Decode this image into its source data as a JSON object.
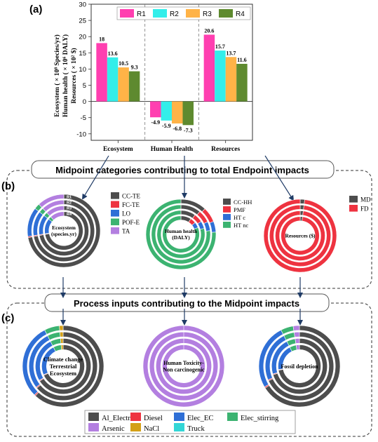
{
  "panel_a": {
    "label": "(a)",
    "ylabel": "Ecosystem ( × 10⁸ Species/yr)",
    "ylabel2": "Human health ( × 10⁶ DALY)",
    "ylabel3": "Resources ( × 10² $)",
    "series_colors": [
      "#ff3fb0",
      "#33eeea",
      "#ffb347",
      "#5e8a2f"
    ]
  },
  "chart_data": [
    {
      "type": "bar",
      "categories": [
        "Ecosystem",
        "Human Health",
        "Resources"
      ],
      "series": [
        {
          "name": "R1",
          "values": [
            18,
            -4.9,
            20.6
          ]
        },
        {
          "name": "R2",
          "values": [
            13.6,
            -5.9,
            15.7
          ]
        },
        {
          "name": "R3",
          "values": [
            10.5,
            -6.8,
            13.7
          ]
        },
        {
          "name": "R4",
          "values": [
            9.3,
            -7.3,
            11.6
          ]
        }
      ],
      "ylim": [
        -12,
        30
      ],
      "yticks": [
        -10,
        -5,
        0,
        5,
        10,
        15,
        20,
        25,
        30
      ],
      "legend": "top"
    },
    {
      "type": "pie",
      "subtype": "nested-donut",
      "title": "Ecosystem (species.yr)",
      "ring_labels": [
        "R4",
        "R3",
        "R2",
        "R1"
      ],
      "categories": [
        "CC-TE",
        "FC-TE",
        "LO",
        "POF-E",
        "TA"
      ],
      "series": [
        {
          "values": [
            72,
            0.5,
            13,
            2.5,
            12
          ]
        },
        {
          "values": [
            72,
            0.5,
            13,
            2.5,
            12
          ]
        },
        {
          "values": [
            72,
            0.5,
            13,
            2.5,
            12
          ]
        },
        {
          "values": [
            72,
            0.5,
            13,
            2.5,
            12
          ]
        }
      ]
    },
    {
      "type": "pie",
      "subtype": "nested-donut",
      "title": "Human health (DALY)",
      "categories": [
        "CC-HH",
        "PMF",
        "HT c",
        "HT nc"
      ],
      "series": [
        {
          "values": [
            12,
            7,
            5,
            76
          ]
        },
        {
          "values": [
            11,
            7,
            5,
            77
          ]
        },
        {
          "values": [
            10,
            6,
            5,
            79
          ]
        },
        {
          "values": [
            9,
            5,
            5,
            81
          ]
        }
      ]
    },
    {
      "type": "pie",
      "subtype": "nested-donut",
      "title": "Resources ($)",
      "categories": [
        "MD",
        "FD"
      ],
      "series": [
        {
          "values": [
            2,
            98
          ]
        },
        {
          "values": [
            2,
            98
          ]
        },
        {
          "values": [
            2,
            98
          ]
        },
        {
          "values": [
            2,
            98
          ]
        }
      ]
    },
    {
      "type": "pie",
      "subtype": "nested-donut",
      "title": "Climate change Terrestrial Ecosystem",
      "categories": [
        "Al_Electrode",
        "Diesel",
        "Elec_EC",
        "Elec_stirring",
        "Arsenic",
        "NaCl",
        "Truck"
      ],
      "series": [
        {
          "values": [
            62,
            0.5,
            30,
            6,
            0,
            1.5,
            0
          ]
        },
        {
          "values": [
            64,
            0.5,
            28,
            6,
            0,
            1.5,
            0
          ]
        },
        {
          "values": [
            66,
            0.5,
            26,
            6,
            0,
            1.5,
            0
          ]
        },
        {
          "values": [
            68,
            0.5,
            24,
            6,
            0,
            1.5,
            0
          ]
        }
      ]
    },
    {
      "type": "pie",
      "subtype": "nested-donut",
      "title": "Human Toxicity- Non carcinogenic",
      "categories": [
        "Al_Electrode",
        "Diesel",
        "Elec_EC",
        "Elec_stirring",
        "Arsenic",
        "NaCl",
        "Truck"
      ],
      "series": [
        {
          "values": [
            0,
            0,
            0,
            0,
            100,
            0,
            0
          ]
        },
        {
          "values": [
            0,
            0,
            0,
            0,
            100,
            0,
            0
          ]
        },
        {
          "values": [
            0,
            0,
            0,
            0,
            100,
            0,
            0
          ]
        },
        {
          "values": [
            0,
            0,
            0,
            0,
            100,
            0,
            0
          ]
        }
      ]
    },
    {
      "type": "pie",
      "subtype": "nested-donut",
      "title": "Fossil depletion",
      "categories": [
        "Al_Electrode",
        "Diesel",
        "Elec_EC",
        "Elec_stirring",
        "Arsenic",
        "NaCl",
        "Truck"
      ],
      "series": [
        {
          "values": [
            66,
            0.5,
            26,
            5,
            2.5,
            0,
            0
          ]
        },
        {
          "values": [
            68,
            0.5,
            24,
            5,
            2.5,
            0,
            0
          ]
        },
        {
          "values": [
            70,
            0.5,
            22,
            5,
            2.5,
            0,
            0
          ]
        },
        {
          "values": [
            72,
            0.5,
            20,
            5,
            2.5,
            0,
            0
          ]
        }
      ]
    }
  ],
  "panel_b": {
    "label": "(b)",
    "banner": "Midpoint categories contributing to  total Endpoint impacts",
    "legend_colors": {
      "CC-TE": "#4d4d4d",
      "FC-TE": "#ee3340",
      "LO": "#2f6fd6",
      "POF-E": "#3cb371",
      "TA": "#b37fe0",
      "CC-HH": "#4d4d4d",
      "PMF": "#ee3340",
      "HT c": "#2f6fd6",
      "HT nc": "#3cb371",
      "MD": "#4d4d4d",
      "FD": "#ee3340"
    }
  },
  "panel_c": {
    "label": "(c)",
    "banner": "Process inputs contributing to the Midpoint impacts",
    "legend_colors": {
      "Al_Electrode": "#4d4d4d",
      "Diesel": "#ee3340",
      "Elec_EC": "#2f6fd6",
      "Elec_stirring": "#3cb371",
      "Arsenic": "#b37fe0",
      "NaCl": "#d4a017",
      "Truck": "#33d6d6"
    }
  }
}
